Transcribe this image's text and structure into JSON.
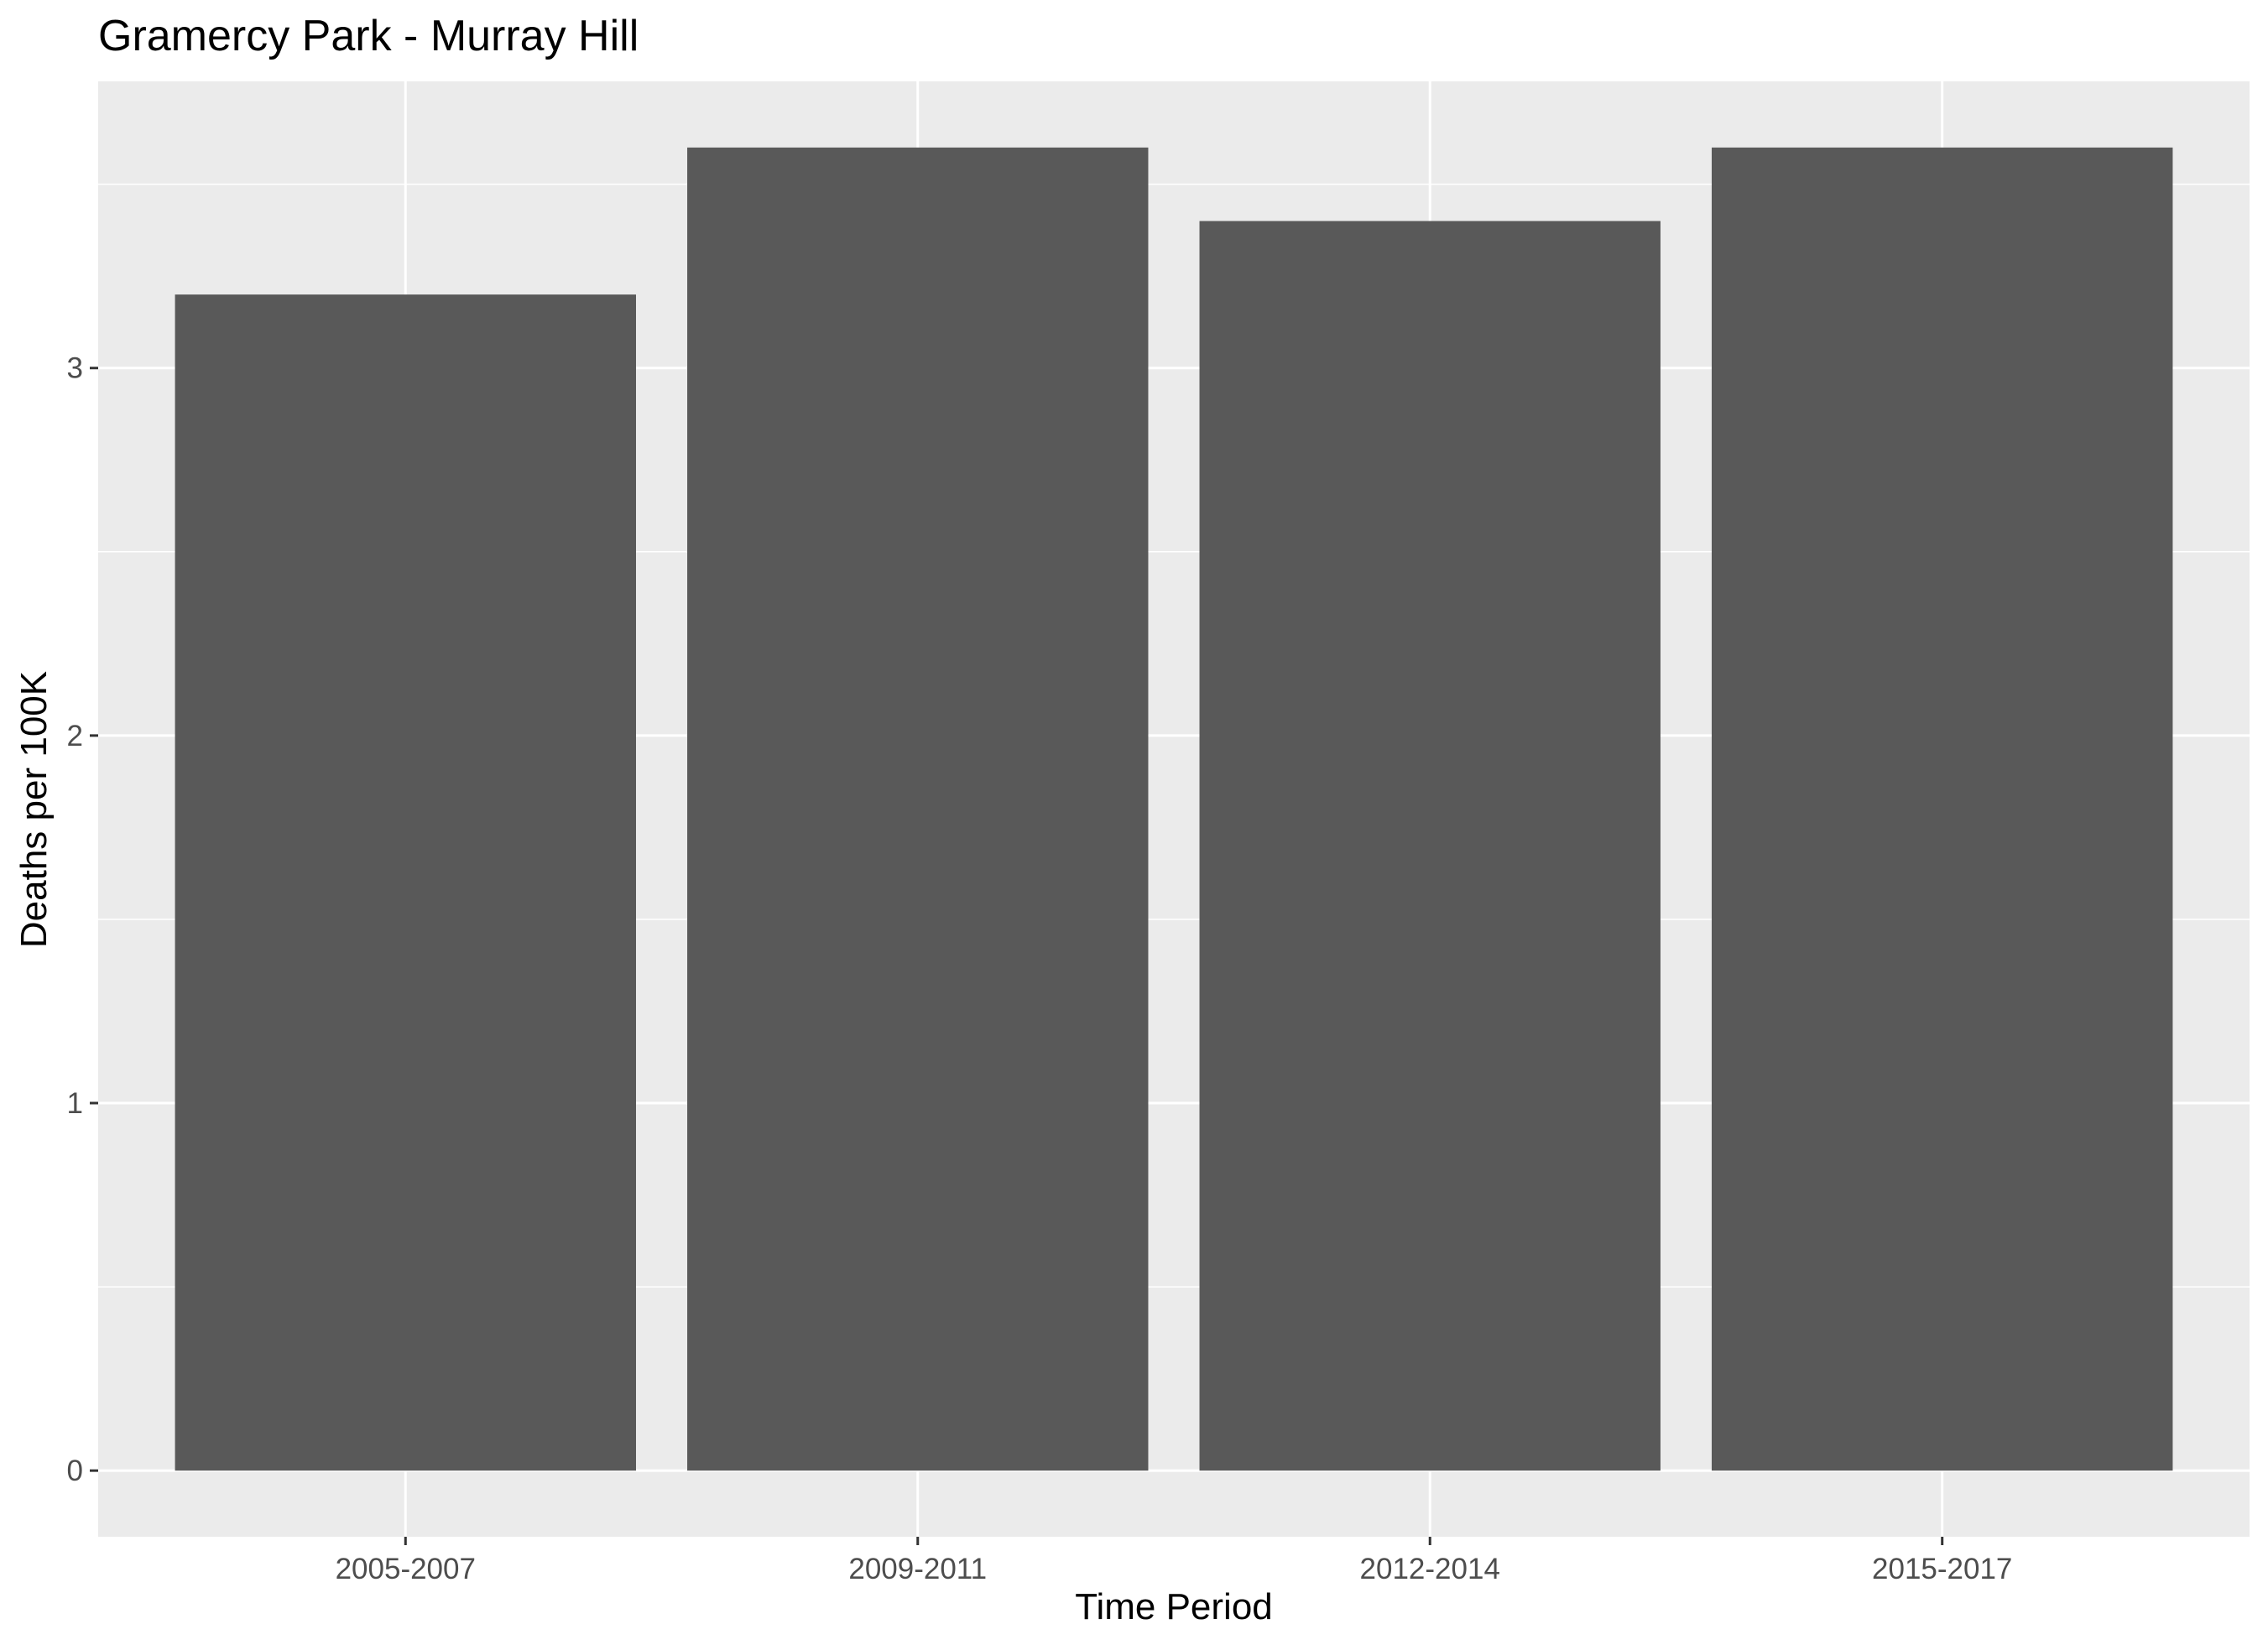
{
  "chart_data": {
    "type": "bar",
    "title": "Gramercy Park - Murray Hill",
    "xlabel": "Time Period",
    "ylabel": "Deaths per 100K",
    "categories": [
      "2005-2007",
      "2009-2011",
      "2012-2014",
      "2015-2017"
    ],
    "values": [
      3.2,
      3.6,
      3.4,
      3.6
    ],
    "ylim": [
      -0.18,
      3.78
    ],
    "yticks": [
      0,
      1,
      2,
      3
    ],
    "grid": true,
    "legend": "none",
    "colors": {
      "bar": "#595959",
      "panel": "#ebebeb",
      "grid_major": "#ffffff",
      "grid_minor": "#ffffff",
      "tick": "#333333",
      "tick_label": "#4d4d4d"
    }
  }
}
